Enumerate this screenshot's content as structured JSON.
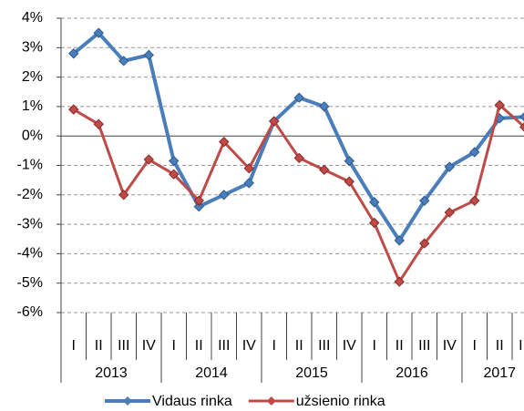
{
  "chart_data": {
    "type": "line",
    "categories": [
      "I",
      "II",
      "III",
      "IV",
      "I",
      "II",
      "III",
      "IV",
      "I",
      "II",
      "III",
      "IV",
      "I",
      "II",
      "III",
      "IV",
      "I",
      "II",
      "III"
    ],
    "years": [
      "2013",
      "2014",
      "2015",
      "2016",
      "2017"
    ],
    "series": [
      {
        "name": "Vidaus rinka",
        "color": "#4a7ebb",
        "values": [
          2.8,
          3.5,
          2.55,
          2.75,
          -0.85,
          -2.4,
          -2.0,
          -1.6,
          0.5,
          1.3,
          1.0,
          -0.85,
          -2.25,
          -3.55,
          -2.2,
          -1.05,
          -0.55,
          0.6,
          0.65
        ]
      },
      {
        "name": "užsienio rinka",
        "color": "#be4b48",
        "values": [
          0.9,
          0.4,
          -2.0,
          -0.8,
          -1.3,
          -2.2,
          -0.2,
          -1.1,
          0.5,
          -0.75,
          -1.15,
          -1.55,
          -2.95,
          -4.95,
          -3.65,
          -2.6,
          -2.2,
          1.05,
          0.3
        ]
      }
    ],
    "ylim": [
      -6,
      4
    ],
    "yticks": [
      {
        "value": -6,
        "label": "-6%"
      },
      {
        "value": -5,
        "label": "-5%"
      },
      {
        "value": -4,
        "label": "-4%"
      },
      {
        "value": -3,
        "label": "-3%"
      },
      {
        "value": -2,
        "label": "-2%"
      },
      {
        "value": -1,
        "label": "-1%"
      },
      {
        "value": 0,
        "label": "0%"
      },
      {
        "value": 1,
        "label": "1%"
      },
      {
        "value": 2,
        "label": "2%"
      },
      {
        "value": 3,
        "label": "3%"
      },
      {
        "value": 4,
        "label": "4%"
      }
    ],
    "grid": true,
    "legend": "bottom"
  }
}
